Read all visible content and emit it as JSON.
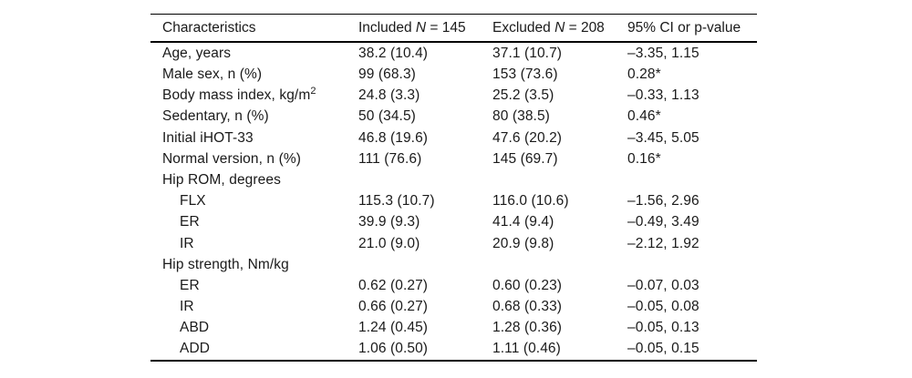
{
  "table": {
    "header": {
      "characteristics": "Characteristics",
      "included": {
        "pre": "Included ",
        "n": "N",
        "post": " = 145"
      },
      "excluded": {
        "pre": "Excluded ",
        "n": "N",
        "post": " = 208"
      },
      "ci": "95% CI or p-value"
    },
    "rows": [
      {
        "label": "Age, years",
        "indent": false,
        "included": "38.2 (10.4)",
        "excluded": "37.1 (10.7)",
        "ci": "–3.35, 1.15"
      },
      {
        "label": "Male sex, n (%)",
        "indent": false,
        "included": "99 (68.3)",
        "excluded": "153 (73.6)",
        "ci": "0.28*"
      },
      {
        "label": "Body mass index, kg/m",
        "label_sup": "2",
        "indent": false,
        "included": "24.8 (3.3)",
        "excluded": "25.2 (3.5)",
        "ci": "–0.33, 1.13"
      },
      {
        "label": "Sedentary, n (%)",
        "indent": false,
        "included": "50 (34.5)",
        "excluded": "80 (38.5)",
        "ci": "0.46*"
      },
      {
        "label": "Initial iHOT-33",
        "indent": false,
        "included": "46.8 (19.6)",
        "excluded": "47.6 (20.2)",
        "ci": "–3.45, 5.05"
      },
      {
        "label": "Normal version, n (%)",
        "indent": false,
        "included": "111 (76.6)",
        "excluded": "145 (69.7)",
        "ci": "0.16*"
      },
      {
        "label": "Hip ROM, degrees",
        "indent": false,
        "included": "",
        "excluded": "",
        "ci": ""
      },
      {
        "label": "FLX",
        "indent": true,
        "included": "115.3 (10.7)",
        "excluded": "116.0 (10.6)",
        "ci": "–1.56, 2.96"
      },
      {
        "label": "ER",
        "indent": true,
        "included": "39.9 (9.3)",
        "excluded": "41.4 (9.4)",
        "ci": "–0.49, 3.49"
      },
      {
        "label": "IR",
        "indent": true,
        "included": "21.0 (9.0)",
        "excluded": "20.9 (9.8)",
        "ci": "–2.12, 1.92"
      },
      {
        "label": "Hip strength, Nm/kg",
        "indent": false,
        "included": "",
        "excluded": "",
        "ci": ""
      },
      {
        "label": "ER",
        "indent": true,
        "included": "0.62 (0.27)",
        "excluded": "0.60 (0.23)",
        "ci": "–0.07, 0.03"
      },
      {
        "label": "IR",
        "indent": true,
        "included": "0.66 (0.27)",
        "excluded": "0.68 (0.33)",
        "ci": "–0.05, 0.08"
      },
      {
        "label": "ABD",
        "indent": true,
        "included": "1.24 (0.45)",
        "excluded": "1.28 (0.36)",
        "ci": "–0.05, 0.13"
      },
      {
        "label": "ADD",
        "indent": true,
        "included": "1.06 (0.50)",
        "excluded": "1.11 (0.46)",
        "ci": "–0.05, 0.15"
      }
    ]
  }
}
